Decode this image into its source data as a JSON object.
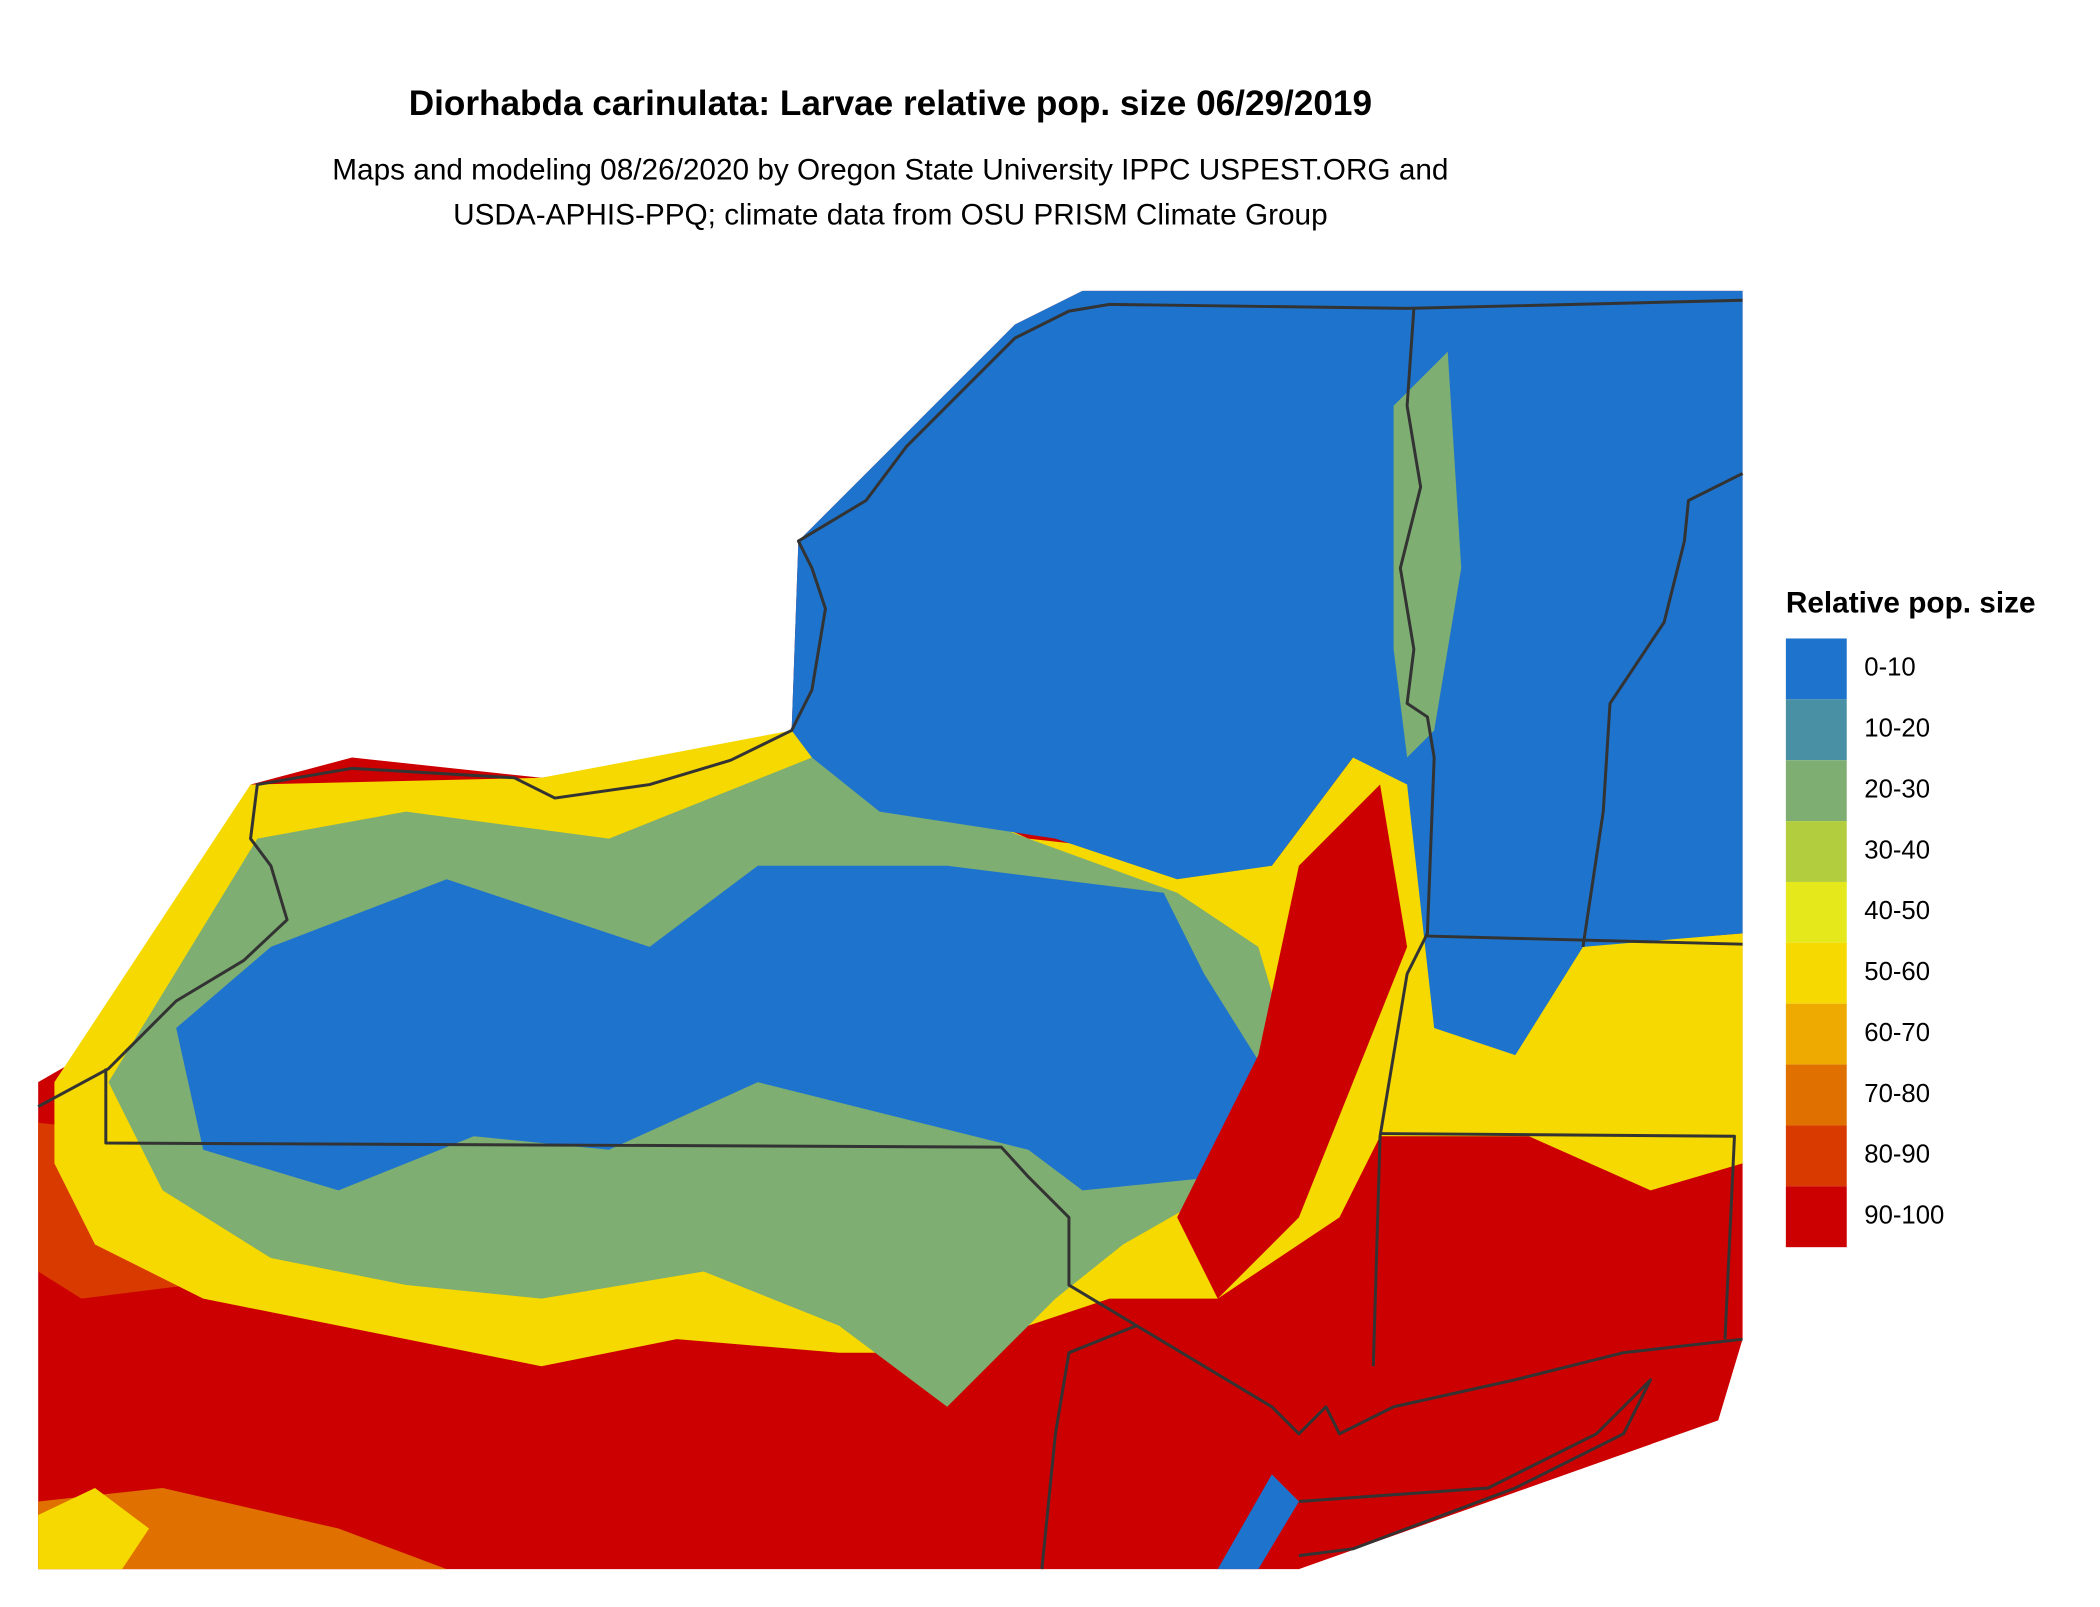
{
  "title": "Diorhabda carinulata: Larvae relative pop. size 06/29/2019",
  "subtitle": [
    "Maps and modeling 08/26/2020 by Oregon State University IPPC USPEST.ORG and",
    "USDA-APHIS-PPQ; climate data from OSU PRISM Climate Group"
  ],
  "legend": {
    "title": "Relative pop. size",
    "items": [
      {
        "label": "0-10",
        "color": "#1e73cc"
      },
      {
        "label": "10-20",
        "color": "#4a90a4"
      },
      {
        "label": "20-30",
        "color": "#7fae72"
      },
      {
        "label": "30-40",
        "color": "#b2cd3e"
      },
      {
        "label": "40-50",
        "color": "#e5e81b"
      },
      {
        "label": "50-60",
        "color": "#f5d900"
      },
      {
        "label": "60-70",
        "color": "#eeaa00"
      },
      {
        "label": "70-80",
        "color": "#e07000"
      },
      {
        "label": "80-90",
        "color": "#d93a00"
      },
      {
        "label": "90-100",
        "color": "#cc0000"
      }
    ]
  }
}
